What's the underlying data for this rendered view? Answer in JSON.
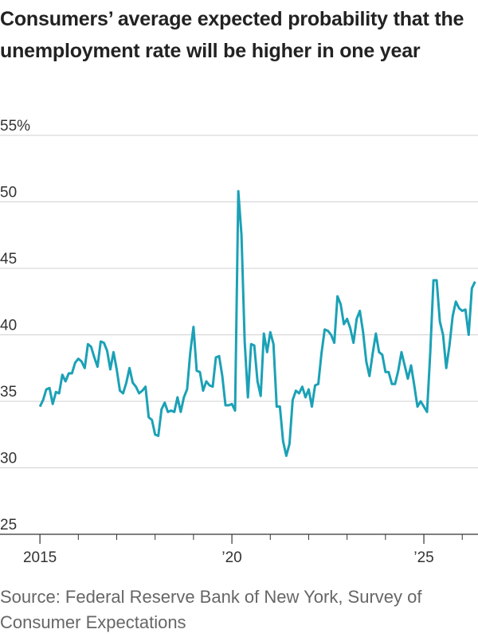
{
  "chart_data": {
    "type": "line",
    "title": "Consumers’ average expected probability that the unemployment rate will be higher in one year",
    "source": "Source: Federal Reserve Bank of New York, Survey of Consumer Expectations",
    "xlim": [
      2013.96,
      2026.41
    ],
    "ylim": [
      25,
      55
    ],
    "yticks": [
      25,
      30,
      35,
      40,
      45,
      {
        "value": 50,
        "label": "50"
      },
      {
        "value": 55,
        "label": "55%"
      }
    ],
    "xticks": [
      2015,
      {
        "value": 2020,
        "label": "’20"
      },
      {
        "value": 2025,
        "label": "’25"
      }
    ],
    "x_minor_ticks": [
      2016,
      2017,
      2018,
      2019,
      2021,
      2022,
      2023,
      2024,
      2026
    ],
    "grid": true,
    "x": [
      2015,
      2015.083,
      2015.167,
      2015.25,
      2015.333,
      2015.417,
      2015.5,
      2015.583,
      2015.667,
      2015.75,
      2015.833,
      2015.917,
      2016,
      2016.083,
      2016.167,
      2016.25,
      2016.333,
      2016.417,
      2016.5,
      2016.583,
      2016.667,
      2016.75,
      2016.833,
      2016.917,
      2017,
      2017.083,
      2017.167,
      2017.25,
      2017.333,
      2017.417,
      2017.5,
      2017.583,
      2017.667,
      2017.75,
      2017.833,
      2017.917,
      2018,
      2018.083,
      2018.167,
      2018.25,
      2018.333,
      2018.417,
      2018.5,
      2018.583,
      2018.667,
      2018.75,
      2018.833,
      2018.917,
      2019,
      2019.083,
      2019.167,
      2019.25,
      2019.333,
      2019.417,
      2019.5,
      2019.583,
      2019.667,
      2019.75,
      2019.833,
      2019.917,
      2020,
      2020.083,
      2020.167,
      2020.25,
      2020.333,
      2020.417,
      2020.5,
      2020.583,
      2020.667,
      2020.75,
      2020.833,
      2020.917,
      2021,
      2021.083,
      2021.167,
      2021.25,
      2021.333,
      2021.417,
      2021.5,
      2021.583,
      2021.667,
      2021.75,
      2021.833,
      2021.917,
      2022,
      2022.083,
      2022.167,
      2022.25,
      2022.333,
      2022.417,
      2022.5,
      2022.583,
      2022.667,
      2022.75,
      2022.833,
      2022.917,
      2023,
      2023.083,
      2023.167,
      2023.25,
      2023.333,
      2023.417,
      2023.5,
      2023.583,
      2023.667,
      2023.75,
      2023.833,
      2023.917,
      2024,
      2024.083,
      2024.167,
      2024.25,
      2024.333,
      2024.417,
      2024.5,
      2024.583,
      2024.667,
      2024.75,
      2024.833,
      2024.917,
      2025,
      2025.083,
      2025.167,
      2025.25,
      2025.333,
      2025.417,
      2025.5,
      2025.583,
      2025.667,
      2025.75,
      2025.833,
      2025.917,
      2026,
      2026.083,
      2026.167,
      2026.25,
      2026.333
    ],
    "series": [
      {
        "name": "Expected probability",
        "color": "#1ba1b6",
        "values": [
          34.6,
          35.1,
          35.9,
          36.0,
          34.8,
          35.7,
          35.6,
          37.0,
          36.5,
          37.1,
          37.1,
          37.9,
          38.2,
          38.0,
          37.5,
          39.3,
          39.1,
          38.3,
          37.6,
          39.5,
          39.4,
          38.8,
          37.4,
          38.7,
          37.4,
          35.8,
          35.6,
          36.4,
          37.5,
          36.4,
          36.1,
          35.6,
          35.8,
          36.1,
          33.8,
          33.6,
          32.5,
          32.4,
          34.4,
          34.9,
          34.2,
          34.3,
          34.2,
          35.3,
          34.2,
          35.3,
          35.9,
          38.7,
          40.6,
          37.3,
          37.2,
          35.8,
          36.5,
          36.2,
          36.1,
          38.3,
          38.4,
          36.9,
          34.7,
          34.7,
          34.8,
          34.3,
          50.8,
          47.5,
          39.5,
          35.3,
          39.3,
          39.2,
          36.5,
          35.4,
          40.1,
          38.7,
          40.2,
          39.3,
          34.6,
          34.6,
          32.0,
          30.9,
          31.8,
          35.1,
          35.8,
          35.6,
          36.1,
          35.3,
          35.9,
          34.6,
          36.2,
          36.3,
          38.6,
          40.4,
          40.3,
          40.0,
          39.4,
          42.9,
          42.3,
          40.8,
          41.2,
          40.5,
          39.4,
          41.2,
          41.8,
          40.2,
          38.0,
          36.9,
          38.6,
          40.1,
          38.7,
          38.5,
          37.2,
          37.2,
          36.3,
          36.3,
          37.3,
          38.7,
          37.7,
          36.7,
          37.7,
          36.2,
          34.6,
          35.0,
          34.6,
          34.2,
          38.7,
          44.1,
          44.1,
          41.0,
          40.0,
          37.5,
          39.2,
          41.4,
          42.5,
          42.0,
          41.8,
          41.9,
          40.0,
          43.5,
          44.0
        ]
      }
    ]
  }
}
